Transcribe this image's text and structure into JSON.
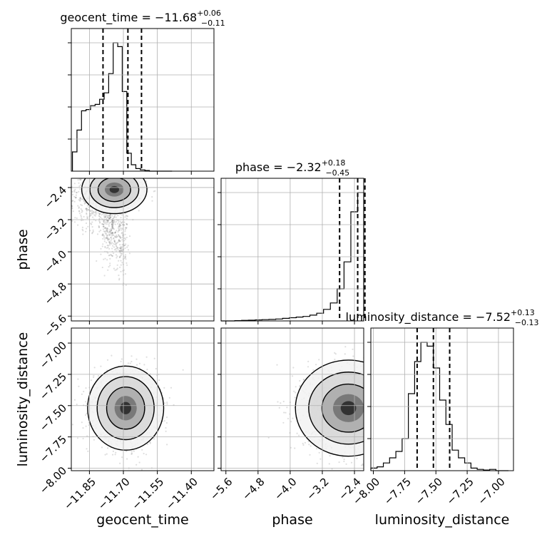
{
  "chart_data": {
    "type": "corner",
    "parameters": [
      "geocent_time",
      "phase",
      "luminosity_distance"
    ],
    "ranges": {
      "geocent_time": [
        -11.93,
        -11.3
      ],
      "phase": [
        -5.72,
        -2.17
      ],
      "luminosity_distance": [
        -8.02,
        -6.88
      ]
    },
    "ticks": {
      "geocent_time": [
        -11.85,
        -11.7,
        -11.55,
        -11.4
      ],
      "phase": [
        -5.6,
        -4.8,
        -4.0,
        -3.2,
        -2.4
      ],
      "luminosity_distance": [
        -8.0,
        -7.75,
        -7.5,
        -7.25,
        -7.0
      ]
    },
    "tick_labels": {
      "geocent_time": [
        "−11.85",
        "−11.70",
        "−11.55",
        "−11.40"
      ],
      "phase": [
        "−5.6",
        "−4.8",
        "−4.0",
        "−3.2",
        "−2.4"
      ],
      "luminosity_distance": [
        "−8.00",
        "−7.75",
        "−7.50",
        "−7.25",
        "−7.00"
      ]
    },
    "axis_labels": {
      "geocent_time": "geocent_time",
      "phase": "phase",
      "luminosity_distance": "luminosity_distance"
    },
    "titles": {
      "geocent_time": {
        "main": "geocent_time = −11.68",
        "sup": "+0.06",
        "sub": "−0.11"
      },
      "phase": {
        "main": "phase = −2.32",
        "sup": "+0.18",
        "sub": "−0.45"
      },
      "luminosity_distance": {
        "main": "luminosity_distance = −7.52",
        "sup": "+0.13",
        "sub": "−0.13"
      }
    },
    "quantiles": {
      "geocent_time": [
        -11.79,
        -11.68,
        -11.62
      ],
      "phase": [
        -2.77,
        -2.32,
        -2.14
      ],
      "luminosity_distance": [
        -7.65,
        -7.52,
        -7.39
      ]
    },
    "histograms": {
      "geocent_time": {
        "edges": [
          -11.925,
          -11.905,
          -11.885,
          -11.865,
          -11.845,
          -11.825,
          -11.805,
          -11.785,
          -11.765,
          -11.745,
          -11.725,
          -11.705,
          -11.685,
          -11.665,
          -11.645,
          -11.625,
          -11.605,
          -11.585,
          -11.565,
          -11.545,
          -11.525,
          -11.505,
          -11.485
        ],
        "counts": [
          0.15,
          0.32,
          0.47,
          0.48,
          0.51,
          0.52,
          0.56,
          0.61,
          0.76,
          1.0,
          0.97,
          0.62,
          0.14,
          0.05,
          0.02,
          0.01,
          0.005,
          0,
          0,
          0,
          0,
          0
        ]
      },
      "phase": {
        "edges": [
          -5.72,
          -5.55,
          -5.38,
          -5.21,
          -5.04,
          -4.87,
          -4.7,
          -4.53,
          -4.36,
          -4.19,
          -4.02,
          -3.85,
          -3.68,
          -3.51,
          -3.34,
          -3.17,
          -3.0,
          -2.83,
          -2.66,
          -2.49,
          -2.32,
          -2.17
        ],
        "counts": [
          0,
          0,
          0.002,
          0.004,
          0.006,
          0.008,
          0.01,
          0.012,
          0.015,
          0.02,
          0.025,
          0.03,
          0.035,
          0.045,
          0.06,
          0.09,
          0.14,
          0.25,
          0.46,
          0.85,
          1.0
        ]
      },
      "luminosity_distance": {
        "edges": [
          -8.02,
          -7.97,
          -7.92,
          -7.87,
          -7.82,
          -7.77,
          -7.72,
          -7.67,
          -7.62,
          -7.57,
          -7.52,
          -7.47,
          -7.42,
          -7.37,
          -7.32,
          -7.27,
          -7.22,
          -7.17,
          -7.12,
          -7.07,
          -7.02,
          -6.97,
          -6.92
        ],
        "counts": [
          0.02,
          0.03,
          0.06,
          0.1,
          0.15,
          0.25,
          0.6,
          0.85,
          1.0,
          0.97,
          0.8,
          0.55,
          0.36,
          0.16,
          0.1,
          0.06,
          0.02,
          0.01,
          0.005,
          0.01,
          0,
          0
        ]
      }
    },
    "scatter_centers": {
      "geocent_time_vs_phase": [
        {
          "x": -11.74,
          "y": -2.45,
          "sx": 0.06,
          "sy": 0.25,
          "w": 0.55
        },
        {
          "x": -11.83,
          "y": -2.75,
          "sx": 0.06,
          "sy": 0.35,
          "w": 0.2
        },
        {
          "x": -11.76,
          "y": -3.4,
          "sx": 0.02,
          "sy": 0.45,
          "w": 0.15
        },
        {
          "x": -11.71,
          "y": -3.6,
          "sx": 0.015,
          "sy": 0.5,
          "w": 0.1
        }
      ],
      "geocent_time_vs_luminosity_distance": [
        {
          "x": -11.69,
          "y": -7.52,
          "sx": 0.07,
          "sy": 0.14,
          "w": 1.0
        }
      ],
      "phase_vs_luminosity_distance": [
        {
          "x": -2.55,
          "y": -7.52,
          "sx": 0.55,
          "sy": 0.16,
          "w": 1.0
        }
      ]
    },
    "grid": true
  }
}
